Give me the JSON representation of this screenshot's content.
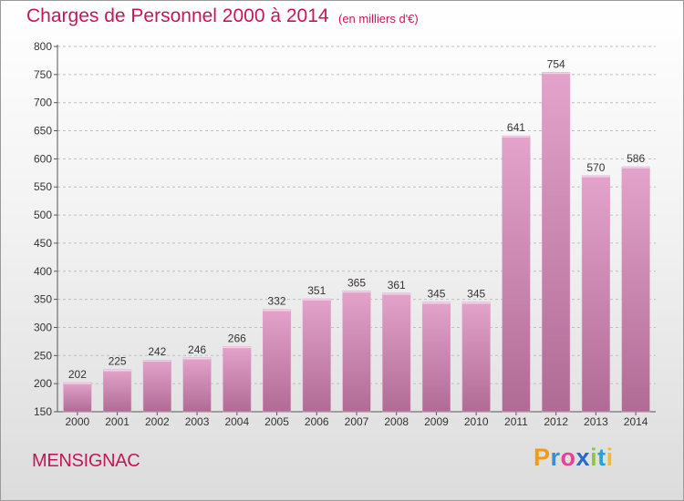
{
  "header": {
    "title": "Charges de Personnel 2000 à 2014",
    "subtitle": "(en milliers d'€)"
  },
  "footer": {
    "place": "MENSIGNAC",
    "logo": {
      "p": "P",
      "r": "r",
      "o": "o",
      "x": "x",
      "i1": "i",
      "t": "t",
      "i2": "i"
    }
  },
  "colors": {
    "bar_light": "#e3a3cb",
    "bar_dark": "#b06b95",
    "title": "#c2185b"
  },
  "chart_data": {
    "type": "bar",
    "title": "Charges de Personnel 2000 à 2014",
    "subtitle": "(en milliers d'€)",
    "xlabel": "",
    "ylabel": "",
    "categories": [
      "2000",
      "2001",
      "2002",
      "2003",
      "2004",
      "2005",
      "2006",
      "2007",
      "2008",
      "2009",
      "2010",
      "2011",
      "2012",
      "2013",
      "2014"
    ],
    "values": [
      202,
      225,
      242,
      246,
      266,
      332,
      351,
      365,
      361,
      345,
      345,
      641,
      754,
      570,
      586
    ],
    "ylim": [
      150,
      800
    ],
    "yticks": [
      150,
      200,
      250,
      300,
      350,
      400,
      450,
      500,
      550,
      600,
      650,
      700,
      750,
      800
    ],
    "grid": true,
    "legend": "none"
  }
}
